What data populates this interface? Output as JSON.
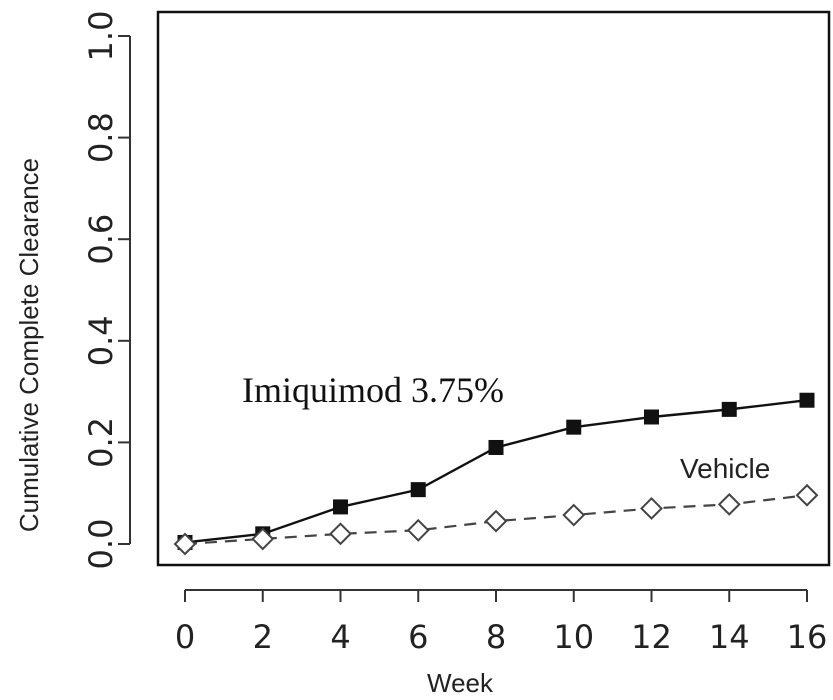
{
  "chart_data": {
    "type": "line",
    "title": "",
    "xlabel": "Week",
    "ylabel": "Cumulative Complete Clearance",
    "x": [
      0,
      2,
      4,
      6,
      8,
      10,
      12,
      14,
      16
    ],
    "xlim": [
      -0.6,
      16.2
    ],
    "ylim": [
      -0.04,
      1.04
    ],
    "x_ticks": [
      "0",
      "2",
      "4",
      "6",
      "8",
      "10",
      "12",
      "14",
      "16"
    ],
    "y_ticks": [
      "0.0",
      "0.2",
      "0.4",
      "0.6",
      "0.8",
      "1.0"
    ],
    "grid": false,
    "legend": "none",
    "series": [
      {
        "name": "Imiquimod 3.75%",
        "values": [
          0.003,
          0.02,
          0.073,
          0.107,
          0.19,
          0.23,
          0.25,
          0.265,
          0.283
        ],
        "line_style": "solid",
        "marker": "filled-square",
        "color": "#111111"
      },
      {
        "name": "Vehicle",
        "values": [
          0.0,
          0.01,
          0.02,
          0.027,
          0.045,
          0.057,
          0.07,
          0.078,
          0.096
        ],
        "line_style": "dashed",
        "marker": "open-diamond",
        "color": "#444444"
      }
    ]
  }
}
